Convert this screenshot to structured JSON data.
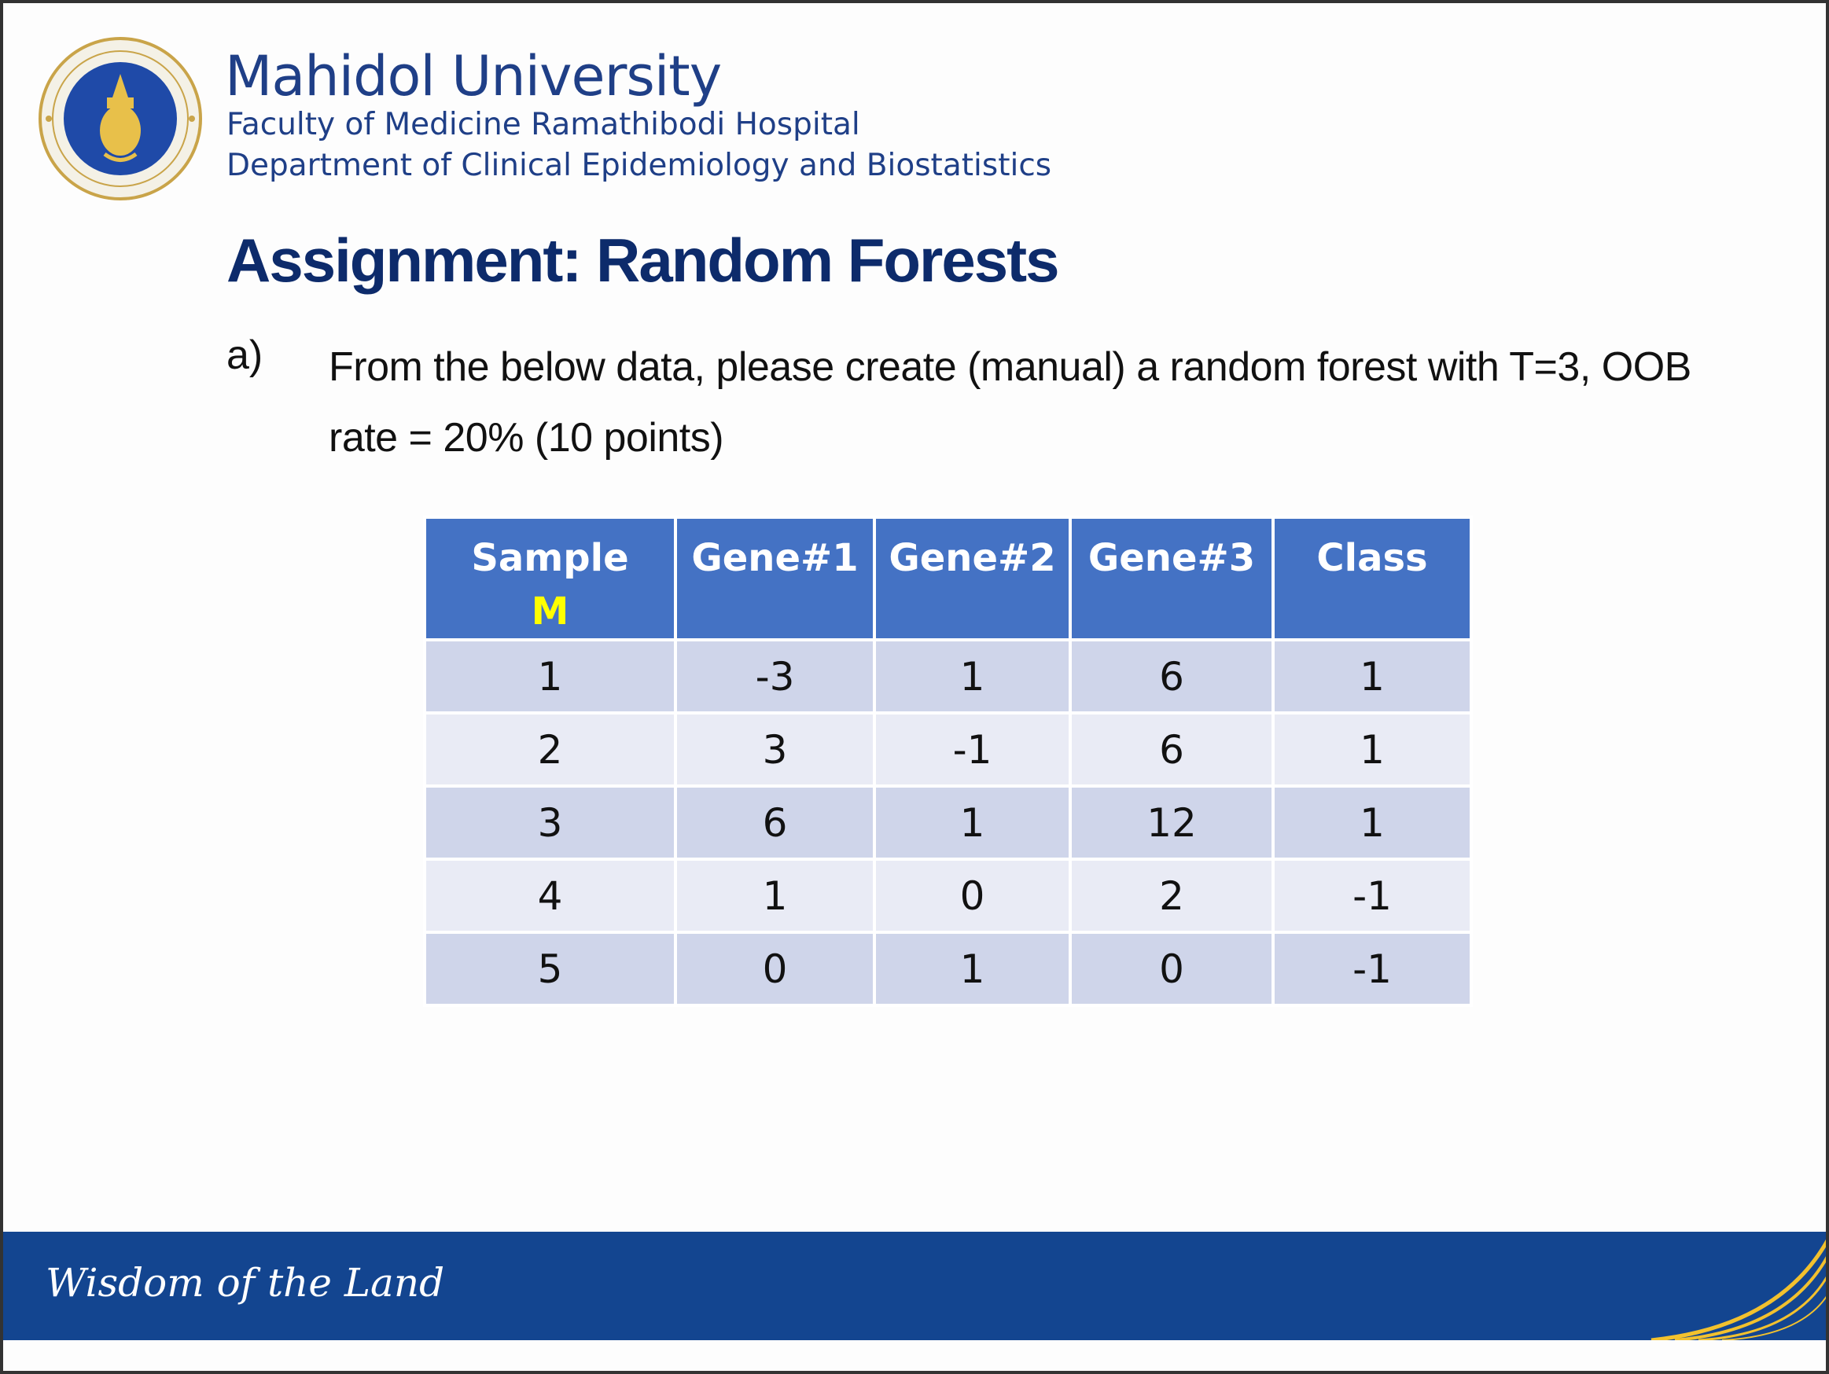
{
  "header": {
    "institution": "Mahidol University",
    "faculty": "Faculty of Medicine Ramathibodi Hospital",
    "department": "Department of Clinical Epidemiology and Biostatistics"
  },
  "title": "Assignment: Random Forests",
  "question": {
    "label": "a)",
    "text": "From the below data, please create (manual) a random forest with T=3, OOB rate = 20% (10 points)"
  },
  "table": {
    "headers": [
      {
        "label": "Sample",
        "sub": "M"
      },
      {
        "label": "Gene#1",
        "sub": ""
      },
      {
        "label": "Gene#2",
        "sub": ""
      },
      {
        "label": "Gene#3",
        "sub": ""
      },
      {
        "label": "Class",
        "sub": ""
      }
    ],
    "rows": [
      [
        "1",
        "-3",
        "1",
        "6",
        "1"
      ],
      [
        "2",
        "3",
        "-1",
        "6",
        "1"
      ],
      [
        "3",
        "6",
        "1",
        "12",
        "1"
      ],
      [
        "4",
        "1",
        "0",
        "2",
        "-1"
      ],
      [
        "5",
        "0",
        "1",
        "0",
        "-1"
      ]
    ]
  },
  "footer": {
    "motto": "Wisdom of the Land"
  },
  "colors": {
    "brand_blue": "#1f3f87",
    "title_navy": "#0d2b6b",
    "header_fill": "#4472c4",
    "highlight_yellow": "#ffff00",
    "row_dark": "#cfd5ea",
    "row_light": "#e9ebf5",
    "footer_band": "#134590",
    "gold": "#f2c12e"
  }
}
